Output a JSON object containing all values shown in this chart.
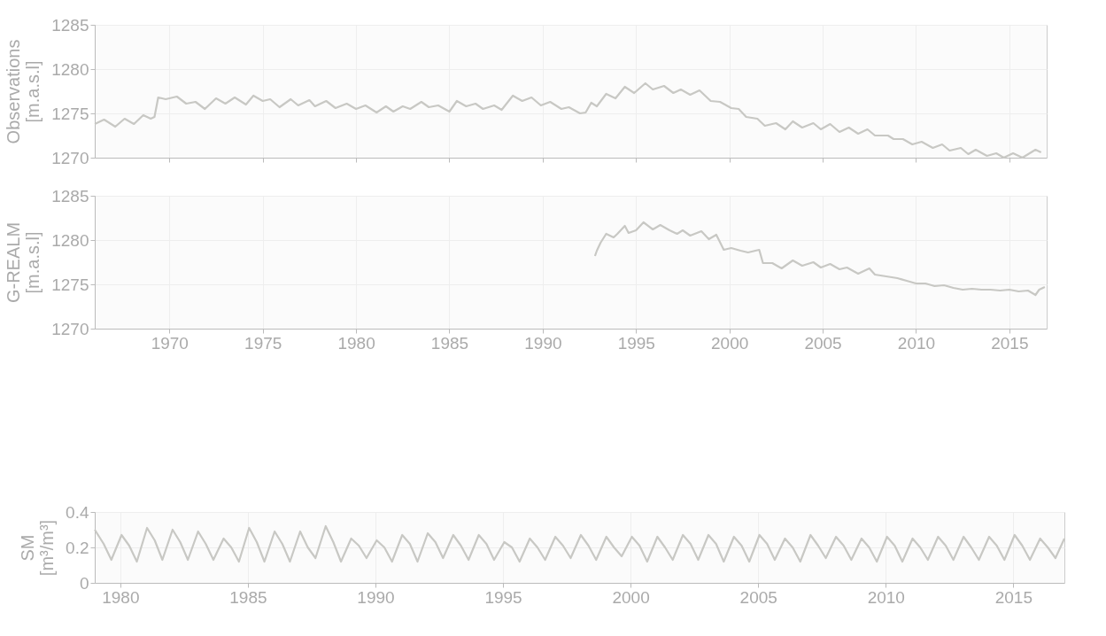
{
  "chart_data": [
    {
      "type": "line",
      "ylabel": "Observations\n[m.a.s.l]",
      "xlim": [
        1966,
        2017
      ],
      "ylim": [
        1270,
        1285
      ],
      "xticks": [
        1970,
        1975,
        1980,
        1985,
        1990,
        1995,
        2000,
        2005,
        2010,
        2015
      ],
      "yticks": [
        1270,
        1275,
        1280,
        1285
      ],
      "grid": true,
      "tick_labels": "y",
      "series": [
        {
          "color": "#c8c8c4",
          "x": [
            1966.0,
            1966.5,
            1967.1,
            1967.6,
            1968.1,
            1968.6,
            1969.0,
            1969.2,
            1969.4,
            1969.8,
            1970.4,
            1970.9,
            1971.4,
            1971.9,
            1972.5,
            1973.0,
            1973.5,
            1974.1,
            1974.5,
            1975.0,
            1975.4,
            1975.9,
            1976.5,
            1976.9,
            1977.5,
            1977.8,
            1978.4,
            1978.9,
            1979.5,
            1980.0,
            1980.5,
            1981.1,
            1981.6,
            1982.0,
            1982.5,
            1982.9,
            1983.5,
            1983.9,
            1984.4,
            1985.0,
            1985.4,
            1985.9,
            1986.4,
            1986.8,
            1987.4,
            1987.8,
            1988.4,
            1988.9,
            1989.4,
            1989.9,
            1990.4,
            1991.0,
            1991.4,
            1992.0,
            1992.3,
            1992.6,
            1992.9,
            1993.4,
            1993.9,
            1994.4,
            1994.9,
            1995.5,
            1995.9,
            1996.5,
            1997.0,
            1997.4,
            1997.9,
            1998.4,
            1999.0,
            1999.5,
            2000.1,
            2000.5,
            2000.9,
            2001.5,
            2001.9,
            2002.5,
            2003.0,
            2003.4,
            2003.9,
            2004.5,
            2004.9,
            2005.4,
            2005.9,
            2006.4,
            2006.9,
            2007.4,
            2007.8,
            2008.5,
            2008.8,
            2009.3,
            2009.8,
            2010.3,
            2010.9,
            2011.4,
            2011.8,
            2012.4,
            2012.8,
            2013.2,
            2013.8,
            2014.3,
            2014.7,
            2015.2,
            2015.7,
            2016.4,
            2016.7
          ],
          "values": [
            1273.8,
            1274.3,
            1273.5,
            1274.4,
            1273.8,
            1274.8,
            1274.4,
            1274.6,
            1276.8,
            1276.6,
            1276.9,
            1276.1,
            1276.3,
            1275.5,
            1276.7,
            1276.1,
            1276.8,
            1276.0,
            1277.0,
            1276.4,
            1276.6,
            1275.7,
            1276.6,
            1275.9,
            1276.5,
            1275.8,
            1276.4,
            1275.6,
            1276.1,
            1275.5,
            1275.9,
            1275.1,
            1275.8,
            1275.2,
            1275.8,
            1275.5,
            1276.3,
            1275.7,
            1275.9,
            1275.2,
            1276.4,
            1275.8,
            1276.1,
            1275.5,
            1275.9,
            1275.4,
            1277.0,
            1276.4,
            1276.8,
            1275.9,
            1276.3,
            1275.5,
            1275.7,
            1275.0,
            1275.1,
            1276.2,
            1275.8,
            1277.2,
            1276.7,
            1278.0,
            1277.3,
            1278.4,
            1277.7,
            1278.1,
            1277.3,
            1277.7,
            1277.1,
            1277.6,
            1276.4,
            1276.3,
            1275.6,
            1275.5,
            1274.6,
            1274.4,
            1273.6,
            1273.9,
            1273.2,
            1274.1,
            1273.4,
            1273.9,
            1273.2,
            1273.8,
            1272.9,
            1273.4,
            1272.7,
            1273.2,
            1272.5,
            1272.5,
            1272.1,
            1272.1,
            1271.5,
            1271.8,
            1271.1,
            1271.5,
            1270.8,
            1271.1,
            1270.4,
            1270.9,
            1270.2,
            1270.5,
            1270.0,
            1270.5,
            1270.0,
            1270.9,
            1270.6
          ]
        }
      ]
    },
    {
      "type": "line",
      "ylabel": "G-REALM\n[m.a.s.l]",
      "xlim": [
        1966,
        2017
      ],
      "ylim": [
        1270,
        1285
      ],
      "xticks": [
        1970,
        1975,
        1980,
        1985,
        1990,
        1995,
        2000,
        2005,
        2010,
        2015
      ],
      "yticks": [
        1270,
        1275,
        1280,
        1285
      ],
      "grid": true,
      "series": [
        {
          "color": "#c8c8c4",
          "x": [
            1992.8,
            1992.9,
            1993.1,
            1993.4,
            1993.8,
            1994.0,
            1994.4,
            1994.6,
            1995.0,
            1995.4,
            1995.9,
            1996.3,
            1996.8,
            1997.2,
            1997.5,
            1997.9,
            1998.5,
            1998.9,
            1999.3,
            1999.7,
            2000.1,
            2000.6,
            2001.0,
            2001.6,
            2001.8,
            2002.3,
            2002.8,
            2003.4,
            2003.9,
            2004.5,
            2004.9,
            2005.4,
            2005.9,
            2006.3,
            2006.9,
            2007.5,
            2007.8,
            2009.0,
            2009.5,
            2010.0,
            2010.5,
            2011.0,
            2011.5,
            2012.0,
            2012.5,
            2013.0,
            2013.5,
            2014.0,
            2014.5,
            2015.0,
            2015.5,
            2016.0,
            2016.4,
            2016.6,
            2016.9
          ],
          "values": [
            1278.2,
            1278.8,
            1279.7,
            1280.7,
            1280.3,
            1280.7,
            1281.6,
            1280.8,
            1281.1,
            1282.0,
            1281.2,
            1281.7,
            1281.1,
            1280.7,
            1281.1,
            1280.5,
            1281.0,
            1280.1,
            1280.6,
            1278.9,
            1279.1,
            1278.8,
            1278.6,
            1278.9,
            1277.4,
            1277.4,
            1276.8,
            1277.7,
            1277.1,
            1277.5,
            1276.9,
            1277.3,
            1276.7,
            1276.9,
            1276.2,
            1276.8,
            1276.1,
            1275.7,
            1275.4,
            1275.1,
            1275.1,
            1274.8,
            1274.9,
            1274.6,
            1274.4,
            1274.5,
            1274.4,
            1274.4,
            1274.3,
            1274.4,
            1274.2,
            1274.3,
            1273.8,
            1274.4,
            1274.7
          ]
        }
      ]
    },
    {
      "type": "line",
      "ylabel": "SM\n[m³/m³]",
      "xlim": [
        1979,
        2017
      ],
      "ylim": [
        0,
        0.4
      ],
      "xticks": [
        1980,
        1985,
        1990,
        1995,
        2000,
        2005,
        2010,
        2015
      ],
      "yticks": [
        0,
        0.2,
        0.4
      ],
      "grid": true,
      "series": [
        {
          "color": "#c8c8c4",
          "x": [
            1979.0,
            1979.35,
            1979.65,
            1980.05,
            1980.35,
            1980.65,
            1981.05,
            1981.35,
            1981.65,
            1982.05,
            1982.35,
            1982.65,
            1983.05,
            1983.35,
            1983.65,
            1984.05,
            1984.35,
            1984.65,
            1985.05,
            1985.35,
            1985.65,
            1986.05,
            1986.35,
            1986.65,
            1987.05,
            1987.35,
            1987.65,
            1988.05,
            1988.35,
            1988.65,
            1989.05,
            1989.35,
            1989.65,
            1990.05,
            1990.35,
            1990.65,
            1991.05,
            1991.35,
            1991.65,
            1992.05,
            1992.35,
            1992.65,
            1993.05,
            1993.35,
            1993.65,
            1994.05,
            1994.35,
            1994.65,
            1995.05,
            1995.35,
            1995.65,
            1996.05,
            1996.35,
            1996.65,
            1997.05,
            1997.35,
            1997.65,
            1998.05,
            1998.35,
            1998.65,
            1999.05,
            1999.35,
            1999.65,
            2000.05,
            2000.35,
            2000.65,
            2001.05,
            2001.35,
            2001.65,
            2002.05,
            2002.35,
            2002.65,
            2003.05,
            2003.35,
            2003.65,
            2004.05,
            2004.35,
            2004.65,
            2005.05,
            2005.35,
            2005.65,
            2006.05,
            2006.35,
            2006.65,
            2007.05,
            2007.35,
            2007.65,
            2008.05,
            2008.35,
            2008.65,
            2009.05,
            2009.35,
            2009.65,
            2010.05,
            2010.35,
            2010.65,
            2011.05,
            2011.35,
            2011.65,
            2012.05,
            2012.35,
            2012.65,
            2013.05,
            2013.35,
            2013.65,
            2014.05,
            2014.35,
            2014.65,
            2015.05,
            2015.35,
            2015.65,
            2016.05,
            2016.35,
            2016.65,
            2017.0
          ],
          "values": [
            0.3,
            0.22,
            0.13,
            0.27,
            0.21,
            0.12,
            0.31,
            0.24,
            0.13,
            0.3,
            0.23,
            0.13,
            0.29,
            0.22,
            0.13,
            0.25,
            0.2,
            0.12,
            0.31,
            0.23,
            0.12,
            0.29,
            0.22,
            0.12,
            0.29,
            0.2,
            0.14,
            0.32,
            0.23,
            0.12,
            0.25,
            0.21,
            0.14,
            0.24,
            0.2,
            0.12,
            0.27,
            0.22,
            0.12,
            0.28,
            0.23,
            0.14,
            0.27,
            0.21,
            0.13,
            0.27,
            0.22,
            0.13,
            0.23,
            0.2,
            0.12,
            0.25,
            0.2,
            0.13,
            0.26,
            0.21,
            0.14,
            0.27,
            0.21,
            0.13,
            0.26,
            0.2,
            0.15,
            0.26,
            0.21,
            0.12,
            0.26,
            0.2,
            0.13,
            0.27,
            0.22,
            0.13,
            0.27,
            0.22,
            0.12,
            0.26,
            0.21,
            0.12,
            0.27,
            0.22,
            0.13,
            0.25,
            0.2,
            0.12,
            0.27,
            0.21,
            0.14,
            0.26,
            0.21,
            0.13,
            0.25,
            0.2,
            0.12,
            0.26,
            0.21,
            0.12,
            0.25,
            0.2,
            0.13,
            0.26,
            0.21,
            0.13,
            0.26,
            0.2,
            0.13,
            0.26,
            0.21,
            0.13,
            0.27,
            0.21,
            0.13,
            0.25,
            0.2,
            0.14,
            0.25
          ]
        }
      ]
    }
  ]
}
